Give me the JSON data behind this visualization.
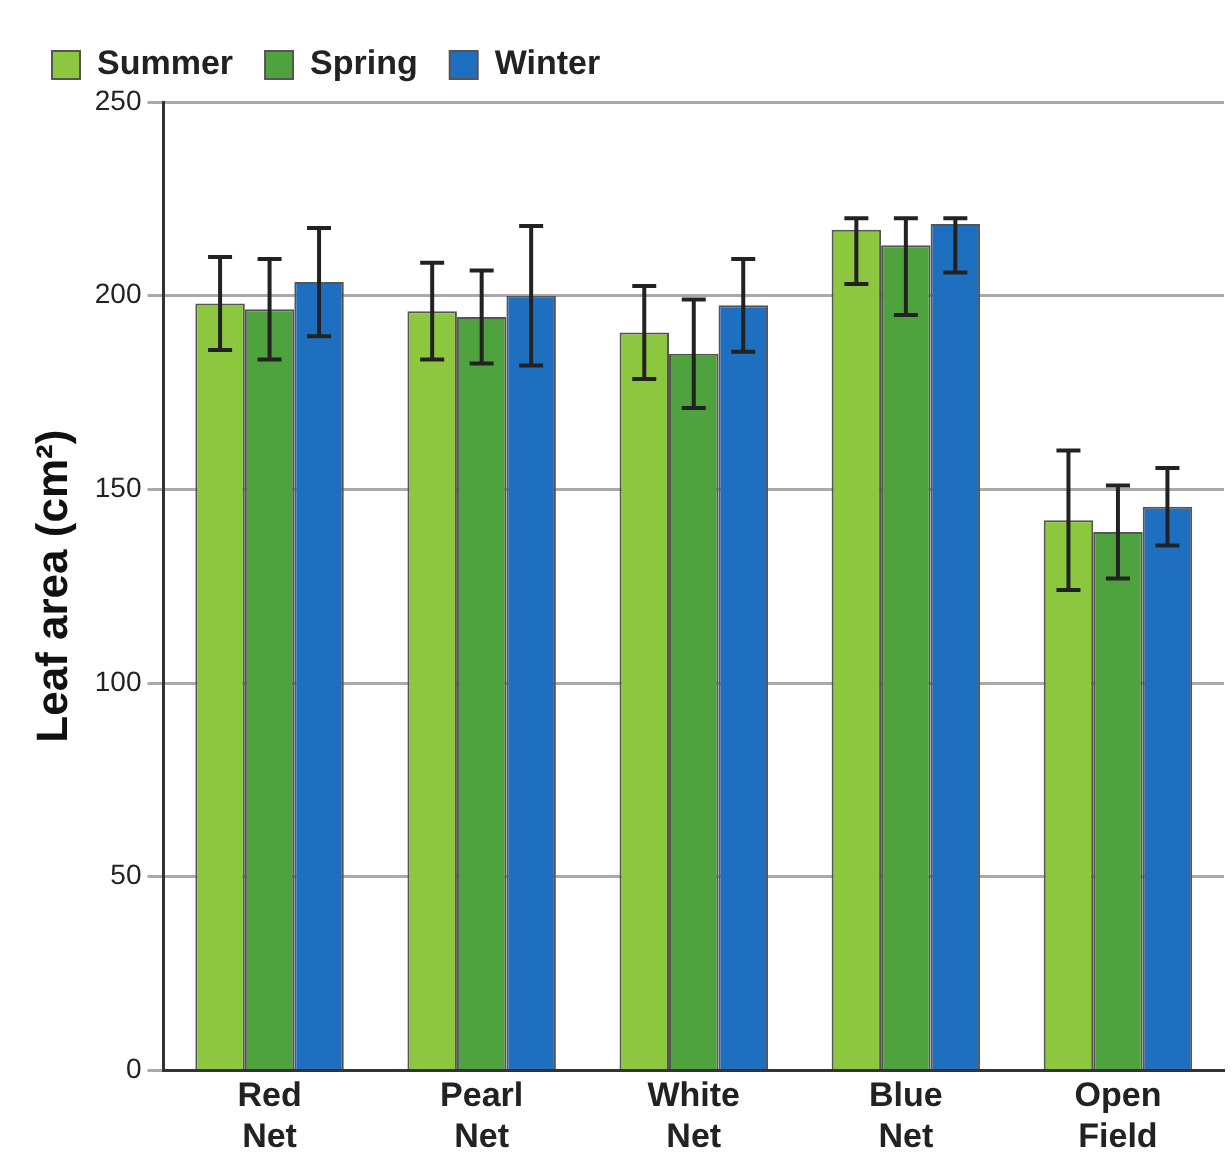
{
  "chart_data": {
    "type": "bar",
    "ylabel": "Leaf area (cm²)",
    "categories": [
      "Red Net",
      "Pearl Net",
      "White Net",
      "Blue Net",
      "Open Field"
    ],
    "series": [
      {
        "name": "Summer",
        "color": "#8dc63f",
        "values": [
          198,
          196,
          190.5,
          217,
          142
        ],
        "errors": [
          12,
          12.5,
          12,
          [
            203,
            220
          ],
          18
        ]
      },
      {
        "name": "Spring",
        "color": "#4ea33e",
        "values": [
          196.5,
          194.5,
          185,
          213,
          139
        ],
        "errors": [
          13,
          12,
          14,
          [
            195,
            220
          ],
          12
        ]
      },
      {
        "name": "Winter",
        "color": "#1f6fc1",
        "values": [
          203.5,
          200,
          197.5,
          218.5,
          145.5
        ],
        "errors": [
          14,
          18,
          12,
          [
            206,
            220
          ],
          10
        ]
      }
    ],
    "ylim": [
      0,
      250
    ],
    "yticks": [
      0,
      50,
      100,
      150,
      200,
      250
    ],
    "grid": "y",
    "legend": "top"
  }
}
